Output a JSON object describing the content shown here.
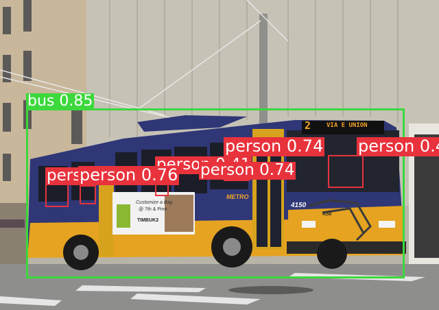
{
  "colors": {
    "bus_box": "#3cd83c",
    "person_box": "#e8323c",
    "label_text": "#ffffff"
  },
  "detections": [
    {
      "class": "bus",
      "label": "bus 0.85",
      "kind": "bus"
    },
    {
      "class": "person",
      "label": "person 0.74",
      "kind": "person"
    },
    {
      "class": "person",
      "label": "person 0.4",
      "kind": "person"
    },
    {
      "class": "person",
      "label": "person 0.41",
      "kind": "person"
    },
    {
      "class": "person",
      "label": "person 0.74",
      "kind": "person"
    },
    {
      "class": "person",
      "label": "person",
      "kind": "person"
    },
    {
      "class": "person",
      "label": "person 0.76",
      "kind": "person"
    }
  ],
  "bus_signs": {
    "route_number": "2",
    "destination": "VIA E UNION",
    "fleet_number": "4150",
    "side_number": "4150",
    "ad_headline": "Customize a Bag",
    "ad_sub": "@ 7th & Pine",
    "ad_brand": "TIMBUK2",
    "operator_brand": "METRO"
  }
}
